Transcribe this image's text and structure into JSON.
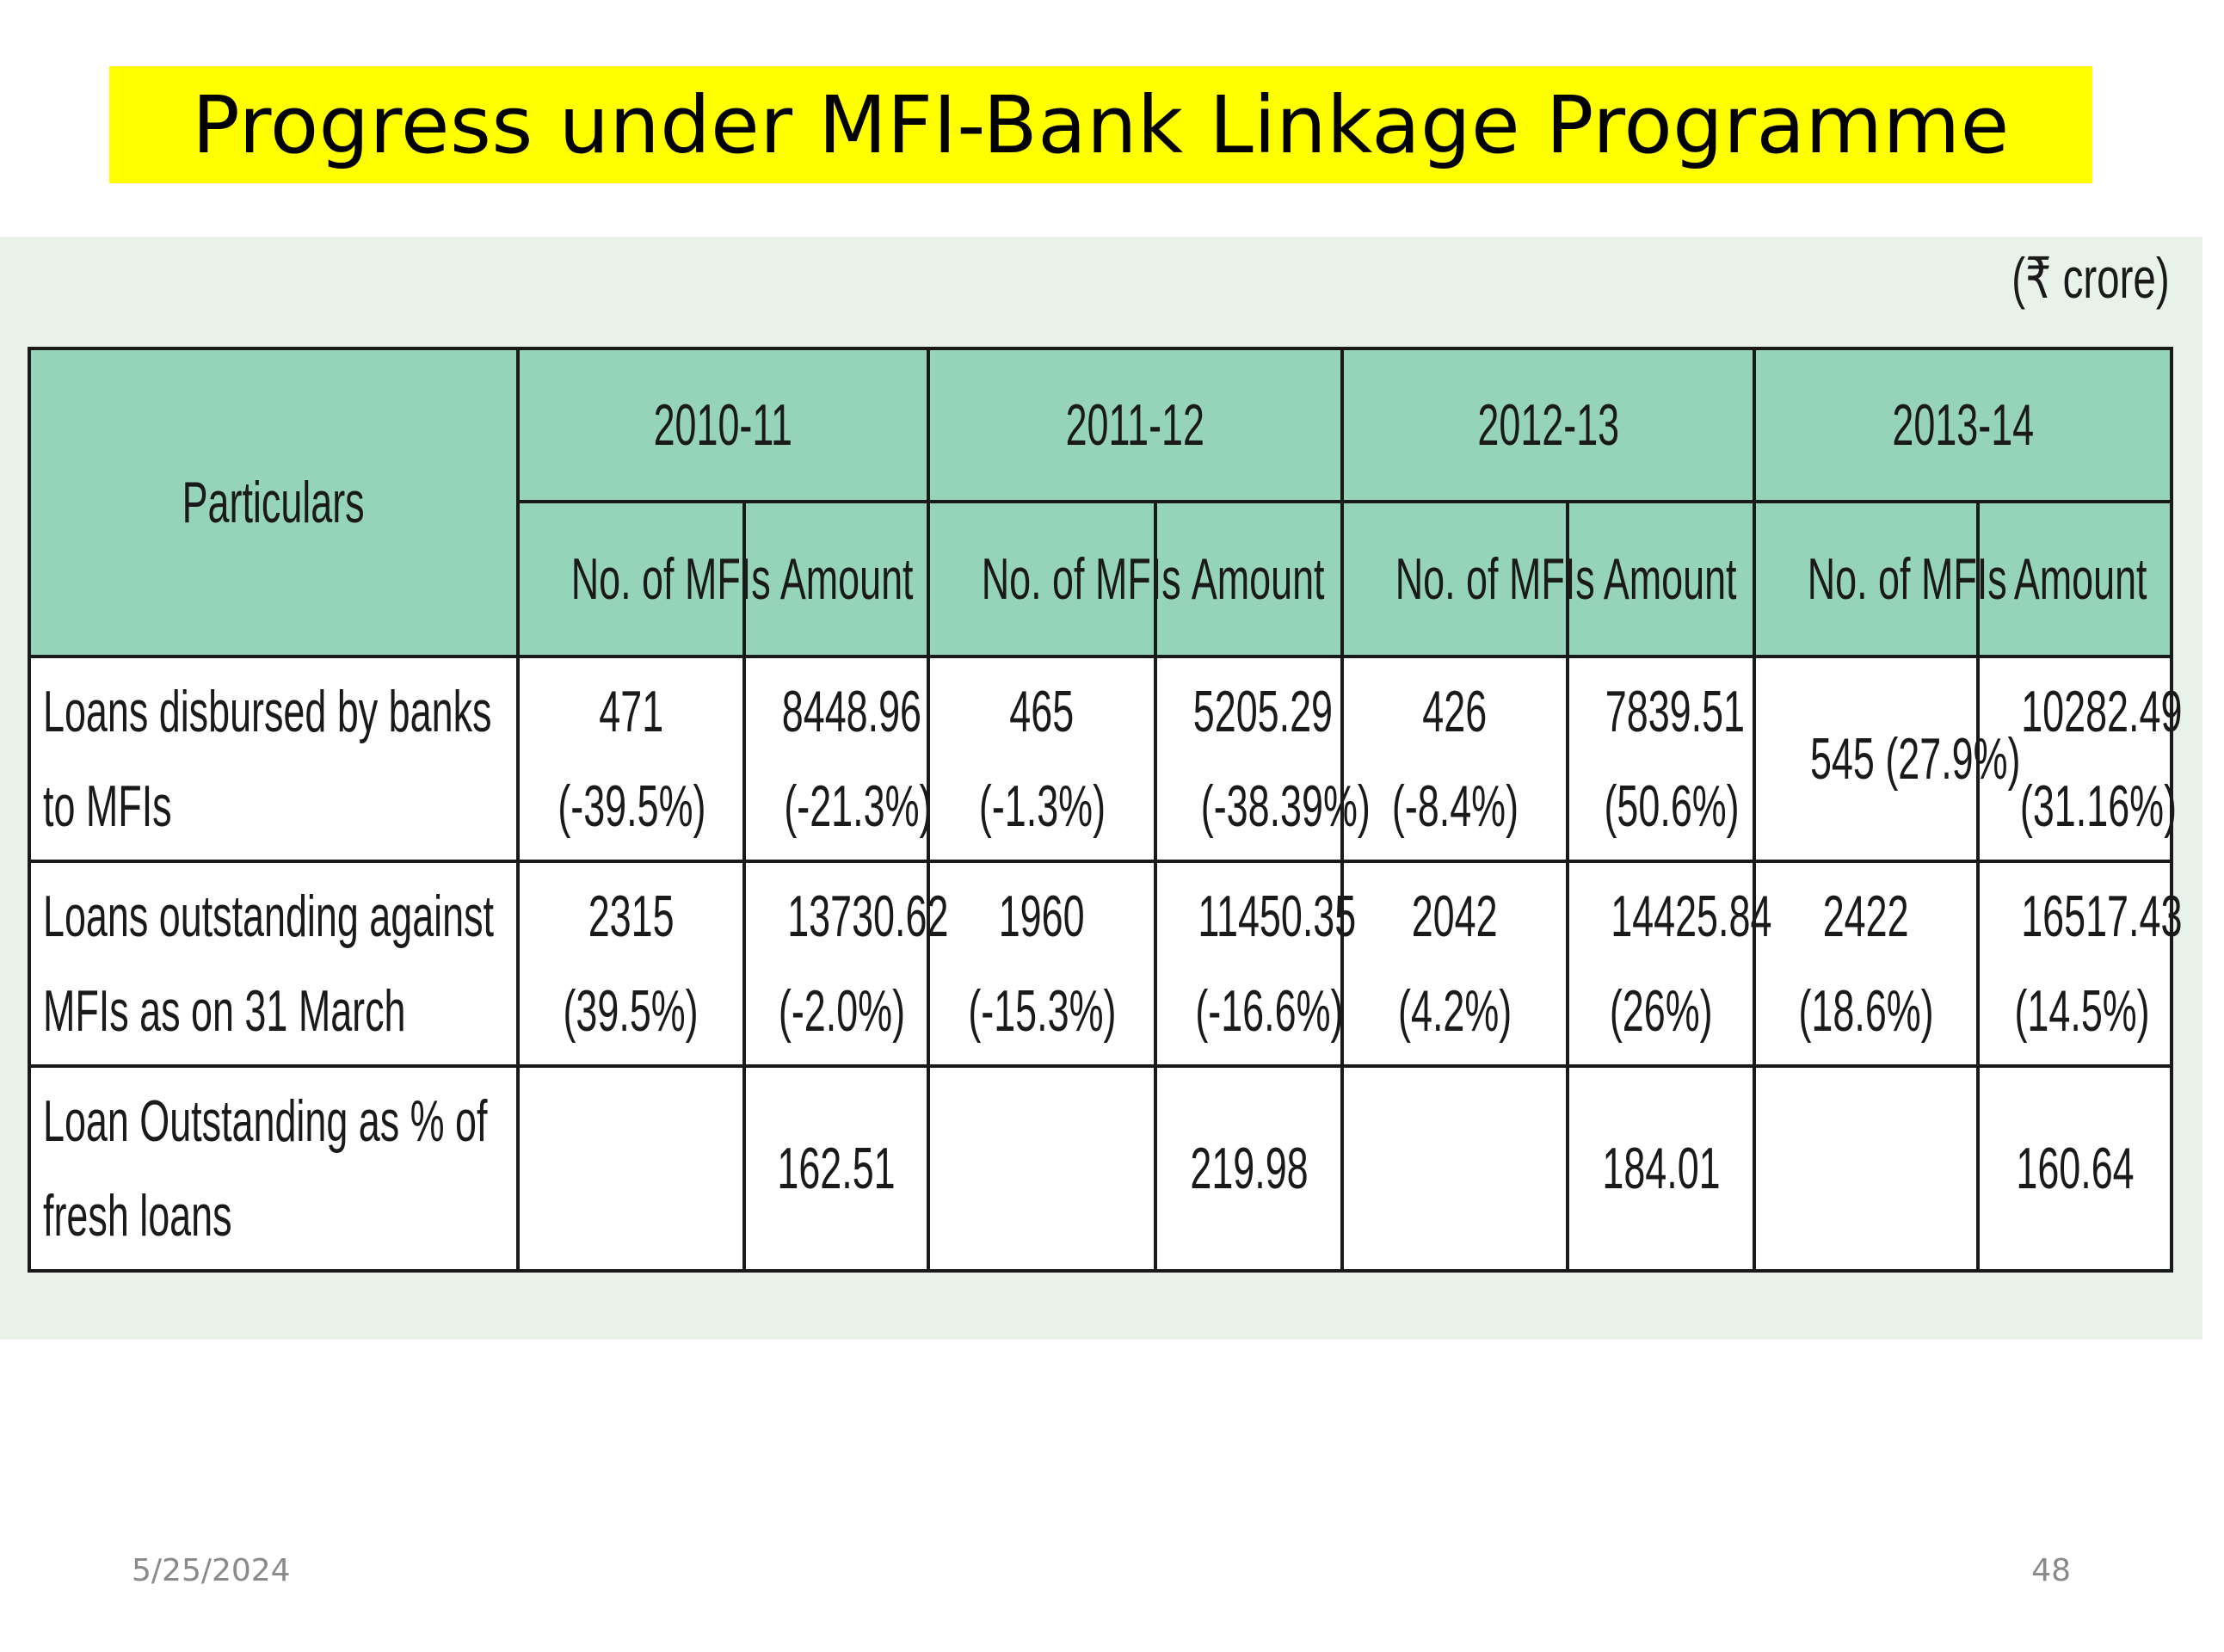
{
  "slide": {
    "title": "Progress under MFI-Bank Linkage Programme",
    "unit": "(₹ crore)",
    "footer_date": "5/25/2024",
    "page_number": "48",
    "title_bg_color": "#ffff00",
    "header_bg_color": "#96d4b9",
    "panel_bg_color": "#e9f2e9"
  },
  "table": {
    "particulars_header": "Particulars",
    "years": [
      "2010-11",
      "2011-12",
      "2012-13",
      "2013-14"
    ],
    "sub_headers": [
      "No. of MFIs",
      "Amount",
      "No. of MFIs",
      "Amount",
      "No. of MFIs",
      "Amount",
      "No. of MFIs",
      "Amount"
    ],
    "rows": [
      {
        "label_lines": [
          "Loans disbursed by banks",
          "to MFIs"
        ],
        "cells": [
          [
            "471",
            "(-39.5%)"
          ],
          [
            "8448.96",
            "(-21.3%)"
          ],
          [
            "465",
            "(-1.3%)"
          ],
          [
            "5205.29",
            "(-38.39%)"
          ],
          [
            "426",
            "(-8.4%)"
          ],
          [
            "7839.51",
            "(50.6%)"
          ],
          [
            "545 (27.9%)"
          ],
          [
            "10282.49",
            "(31.16%)"
          ]
        ]
      },
      {
        "label_lines": [
          "Loans outstanding against",
          "MFIs as on 31 March"
        ],
        "cells": [
          [
            "2315",
            "(39.5%)"
          ],
          [
            "13730.62",
            "(-2.0%)"
          ],
          [
            "1960",
            "(-15.3%)"
          ],
          [
            "11450.35",
            "(-16.6%)"
          ],
          [
            "2042",
            "(4.2%)"
          ],
          [
            "14425.84",
            "(26%)"
          ],
          [
            "2422",
            "(18.6%)"
          ],
          [
            "16517.43",
            "(14.5%)"
          ]
        ]
      },
      {
        "label_lines": [
          "Loan Outstanding as % of",
          "fresh loans"
        ],
        "cells": [
          [
            ""
          ],
          [
            "162.51"
          ],
          [
            ""
          ],
          [
            "219.98"
          ],
          [
            ""
          ],
          [
            "184.01"
          ],
          [
            ""
          ],
          [
            "160.64"
          ]
        ]
      }
    ]
  }
}
